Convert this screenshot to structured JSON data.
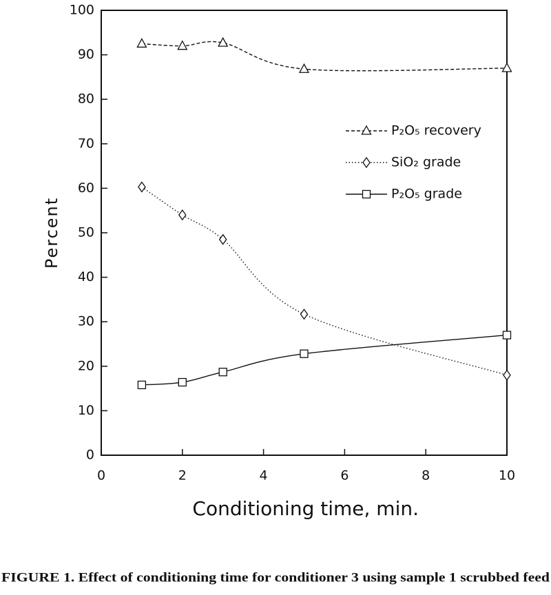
{
  "chart_data": {
    "type": "line",
    "x": [
      1,
      2,
      3,
      5,
      10
    ],
    "series": [
      {
        "name": "P₂O₅ recovery",
        "color": "#111111",
        "marker": "triangle",
        "line_style": "dashed",
        "values": [
          92.5,
          92,
          92.7,
          86.8,
          87
        ]
      },
      {
        "name": "SiO₂ grade",
        "color": "#111111",
        "marker": "diamond",
        "line_style": "dotted",
        "values": [
          60.3,
          54,
          48.5,
          31.7,
          18
        ]
      },
      {
        "name": "P₂O₅ grade",
        "color": "#111111",
        "marker": "square",
        "line_style": "solid",
        "values": [
          15.8,
          16.4,
          18.7,
          22.8,
          27
        ]
      }
    ],
    "xlim": [
      0,
      10
    ],
    "xticks": [
      0,
      2,
      4,
      6,
      8,
      10
    ],
    "ylim": [
      0,
      100
    ],
    "yticks": [
      0,
      10,
      20,
      30,
      40,
      50,
      60,
      70,
      80,
      90,
      100
    ],
    "x_label": "Conditioning time, min.",
    "y_label": "Percent",
    "caption": "FIGURE 1. Effect of conditioning time for conditioner 3 using sample 1 scrubbed feed",
    "grid": false
  }
}
